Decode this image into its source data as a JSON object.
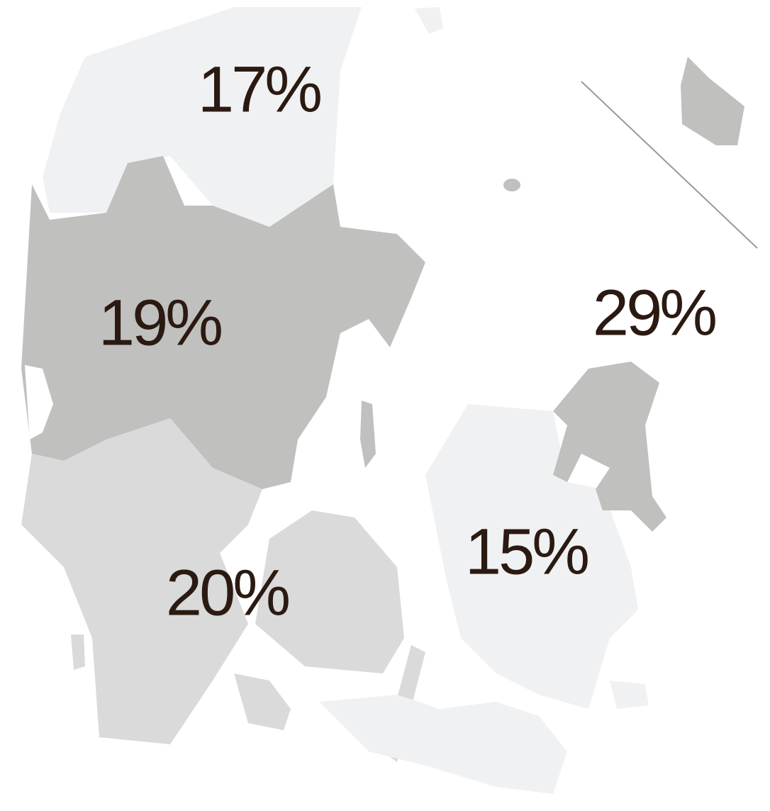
{
  "regions": [
    {
      "label": "17%"
    },
    {
      "label": "19%"
    },
    {
      "label": "29%"
    },
    {
      "label": "15%"
    },
    {
      "label": "20%"
    }
  ]
}
